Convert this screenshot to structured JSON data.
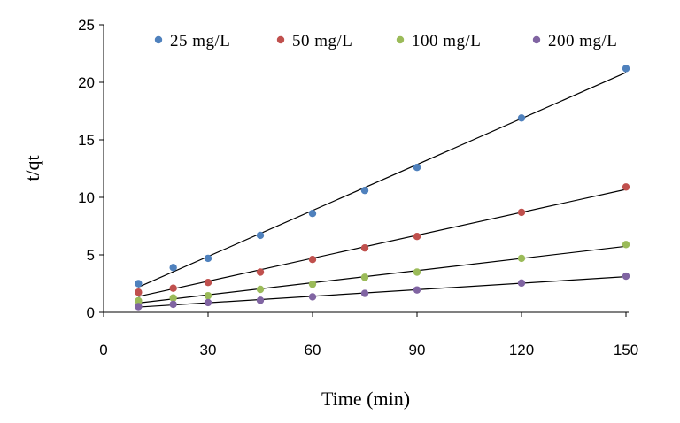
{
  "chart_data": {
    "type": "scatter",
    "title": "",
    "xlabel": "Time (min)",
    "ylabel": "t/qt",
    "xlim": [
      0,
      150
    ],
    "ylim": [
      0,
      25
    ],
    "xticks": [
      0,
      30,
      60,
      90,
      120,
      150
    ],
    "yticks": [
      0,
      5,
      10,
      15,
      20,
      25
    ],
    "grid": false,
    "legend_position": "top",
    "trendlines": "linear, black, per series",
    "x": [
      10,
      20,
      30,
      45,
      60,
      75,
      90,
      120,
      150
    ],
    "series": [
      {
        "name": "25 mg/L",
        "color": "#4F81BD",
        "values": [
          2.5,
          3.9,
          4.7,
          6.7,
          8.6,
          10.6,
          12.6,
          16.9,
          21.2
        ]
      },
      {
        "name": "50 mg/L",
        "color": "#C0504D",
        "values": [
          1.75,
          2.1,
          2.6,
          3.5,
          4.6,
          5.6,
          6.6,
          8.7,
          10.9
        ]
      },
      {
        "name": "100 mg/L",
        "color": "#9BBB59",
        "values": [
          1.0,
          1.25,
          1.45,
          2.0,
          2.45,
          3.05,
          3.5,
          4.7,
          5.9
        ]
      },
      {
        "name": "200 mg/L",
        "color": "#8064A2",
        "values": [
          0.5,
          0.7,
          0.85,
          1.05,
          1.35,
          1.65,
          1.95,
          2.55,
          3.15
        ]
      }
    ]
  }
}
